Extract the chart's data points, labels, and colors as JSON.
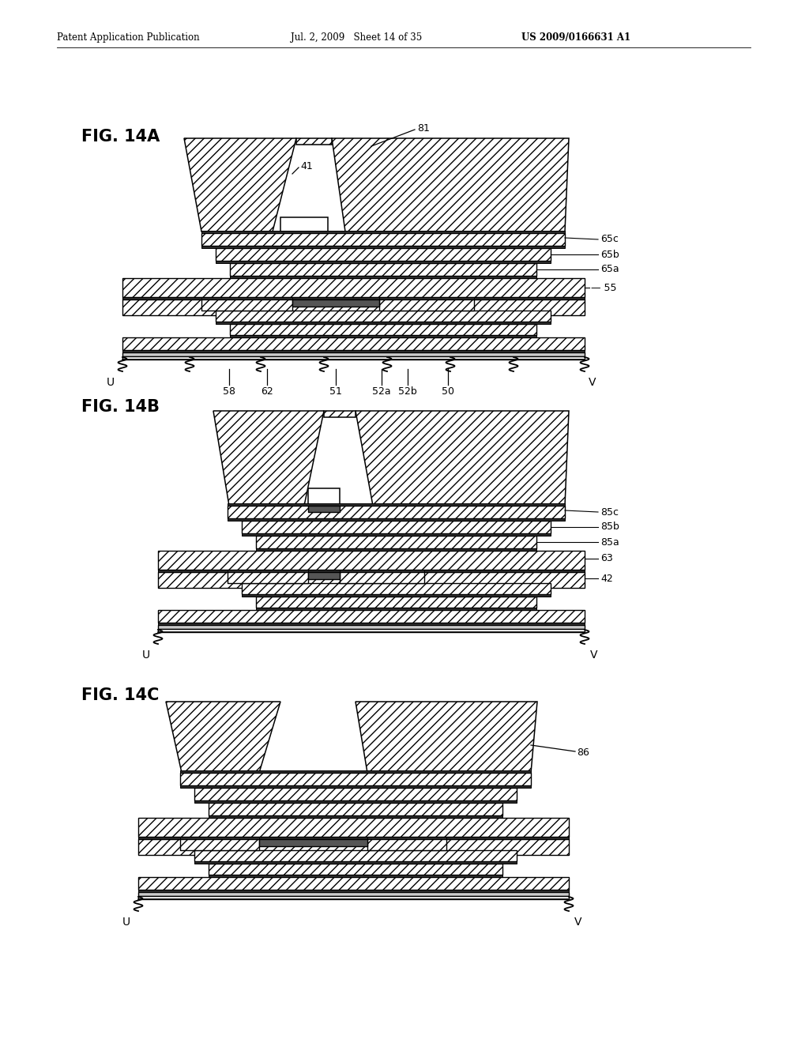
{
  "header_left": "Patent Application Publication",
  "header_mid": "Jul. 2, 2009   Sheet 14 of 35",
  "header_right": "US 2009/0166631 A1",
  "bg": "#ffffff"
}
